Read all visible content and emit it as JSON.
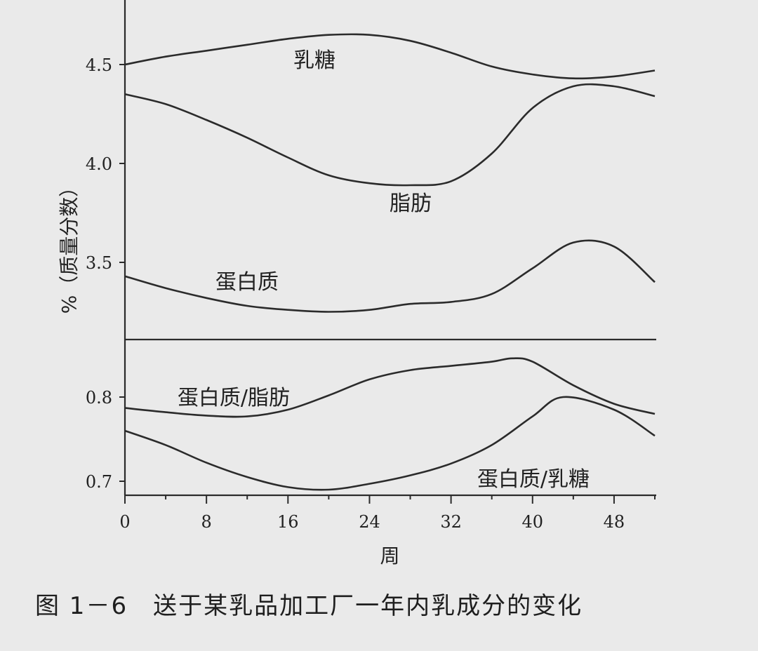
{
  "caption": "图 1－6　送于某乳品加工厂一年内乳成分的变化",
  "chart_data": [
    {
      "type": "line",
      "xlabel": "周",
      "ylabel": "%（质量分数）",
      "xlim": [
        0,
        52
      ],
      "ylim": [
        3.2,
        4.72
      ],
      "yticks": [
        3.5,
        4.0,
        4.5
      ],
      "ytick_labels": [
        "3.5",
        "4.0",
        "4.5"
      ],
      "series": [
        {
          "name": "乳糖",
          "x": [
            0,
            4,
            8,
            12,
            16,
            20,
            24,
            28,
            32,
            36,
            40,
            44,
            48,
            52
          ],
          "y": [
            4.5,
            4.54,
            4.57,
            4.6,
            4.63,
            4.65,
            4.65,
            4.62,
            4.56,
            4.49,
            4.45,
            4.43,
            4.44,
            4.47
          ]
        },
        {
          "name": "脂肪",
          "x": [
            0,
            4,
            8,
            12,
            16,
            20,
            24,
            28,
            32,
            36,
            40,
            44,
            48,
            52
          ],
          "y": [
            4.35,
            4.3,
            4.22,
            4.13,
            4.03,
            3.94,
            3.9,
            3.89,
            3.91,
            4.05,
            4.28,
            4.39,
            4.39,
            4.34
          ]
        },
        {
          "name": "蛋白质",
          "x": [
            0,
            4,
            8,
            12,
            16,
            20,
            24,
            28,
            32,
            36,
            40,
            44,
            48,
            52
          ],
          "y": [
            3.43,
            3.37,
            3.32,
            3.28,
            3.26,
            3.25,
            3.26,
            3.29,
            3.3,
            3.34,
            3.47,
            3.6,
            3.58,
            3.4
          ]
        }
      ]
    },
    {
      "type": "line",
      "xlabel": "周",
      "xlim": [
        0,
        52
      ],
      "ylim": [
        0.685,
        0.85
      ],
      "yticks": [
        0.7,
        0.8
      ],
      "ytick_labels": [
        "0.7",
        "0.8"
      ],
      "xticks": [
        0,
        8,
        16,
        24,
        32,
        40,
        48
      ],
      "xtick_labels": [
        "0",
        "8",
        "16",
        "24",
        "32",
        "40",
        "48"
      ],
      "series": [
        {
          "name": "蛋白质/脂肪",
          "x": [
            0,
            4,
            8,
            12,
            16,
            20,
            24,
            28,
            32,
            36,
            38,
            40,
            44,
            48,
            52
          ],
          "y": [
            0.787,
            0.782,
            0.778,
            0.777,
            0.785,
            0.802,
            0.821,
            0.832,
            0.837,
            0.842,
            0.846,
            0.842,
            0.814,
            0.792,
            0.78
          ]
        },
        {
          "name": "蛋白质/乳糖",
          "x": [
            0,
            4,
            8,
            12,
            16,
            20,
            24,
            28,
            32,
            36,
            40,
            43,
            48,
            52
          ],
          "y": [
            0.76,
            0.743,
            0.722,
            0.705,
            0.693,
            0.69,
            0.697,
            0.707,
            0.721,
            0.743,
            0.777,
            0.8,
            0.785,
            0.754
          ]
        }
      ]
    }
  ]
}
